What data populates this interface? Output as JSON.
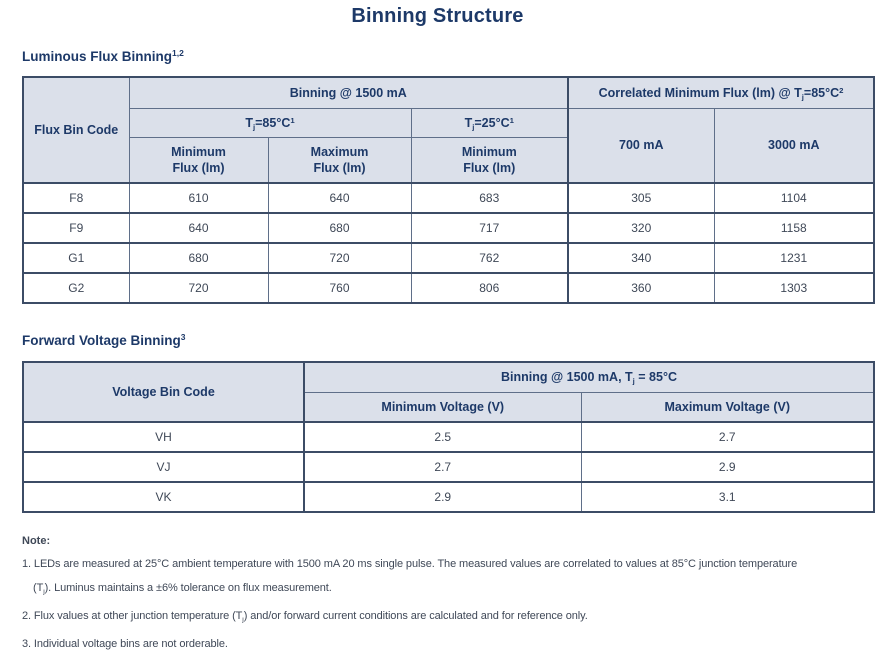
{
  "page": {
    "title": "Binning Structure"
  },
  "colors": {
    "accent_navy": "#1d3968",
    "table_header_bg": "#dbe0ea",
    "border_dark": "#3c4c66",
    "border_light": "#5f6f89",
    "body_text": "#3f4857",
    "page_bg": "#ffffff"
  },
  "flux_section": {
    "heading": "Luminous Flux Binning",
    "heading_sup": "1,2",
    "table": {
      "corner_header": "Flux Bin Code",
      "binning_header": "Binning @ 1500 mA",
      "correlated_header": [
        {
          "t": "Correlated Minimum Flux (lm) @ T"
        },
        {
          "t": "j",
          "v": "sub"
        },
        {
          "t": "=85°C"
        },
        {
          "t": "2",
          "v": "sup"
        }
      ],
      "tj85_header": [
        {
          "t": "T"
        },
        {
          "t": "j",
          "v": "sub"
        },
        {
          "t": "=85°C"
        },
        {
          "t": "1",
          "v": "sup"
        }
      ],
      "tj25_header": [
        {
          "t": "T"
        },
        {
          "t": "j",
          "v": "sub"
        },
        {
          "t": "=25°C"
        },
        {
          "t": "1",
          "v": "sup"
        }
      ],
      "min_flux_85_header": "Minimum\nFlux (lm)",
      "max_flux_85_header": "Maximum\nFlux (lm)",
      "min_flux_25_header": "Minimum\nFlux (lm)",
      "col_700_header": "700 mA",
      "col_3000_header": "3000 mA",
      "rows": [
        [
          "F8",
          "610",
          "640",
          "683",
          "305",
          "1104"
        ],
        [
          "F9",
          "640",
          "680",
          "717",
          "320",
          "1158"
        ],
        [
          "G1",
          "680",
          "720",
          "762",
          "340",
          "1231"
        ],
        [
          "G2",
          "720",
          "760",
          "806",
          "360",
          "1303"
        ]
      ]
    }
  },
  "voltage_section": {
    "heading": "Forward Voltage Binning",
    "heading_sup": "3",
    "table": {
      "corner_header": "Voltage Bin Code",
      "binning_header": [
        {
          "t": "Binning @ 1500 mA, T"
        },
        {
          "t": "j",
          "v": "sub"
        },
        {
          "t": " = 85°C"
        }
      ],
      "min_voltage_header": "Minimum Voltage (V)",
      "max_voltage_header": "Maximum Voltage (V)",
      "rows": [
        [
          "VH",
          "2.5",
          "2.7"
        ],
        [
          "VJ",
          "2.7",
          "2.9"
        ],
        [
          "VK",
          "2.9",
          "3.1"
        ]
      ]
    }
  },
  "notes": {
    "heading": "Note:",
    "lines": [
      {
        "segments": [
          {
            "t": "1. LEDs are measured at 25°C ambient temperature with 1500 mA 20 ms single pulse. The measured values are correlated to values at 85°C junction temperature"
          }
        ]
      },
      {
        "segments": [
          {
            "t": "(T"
          },
          {
            "t": "j",
            "v": "sub"
          },
          {
            "t": "). Luminus maintains a ±6% tolerance on flux measurement."
          }
        ]
      },
      {
        "segments": [
          {
            "t": "2. Flux values at other junction temperature (T"
          },
          {
            "t": "j",
            "v": "sub"
          },
          {
            "t": ") and/or forward current conditions are calculated and for reference only."
          }
        ]
      },
      {
        "segments": [
          {
            "t": "3. Individual voltage bins are not orderable."
          }
        ]
      }
    ]
  }
}
